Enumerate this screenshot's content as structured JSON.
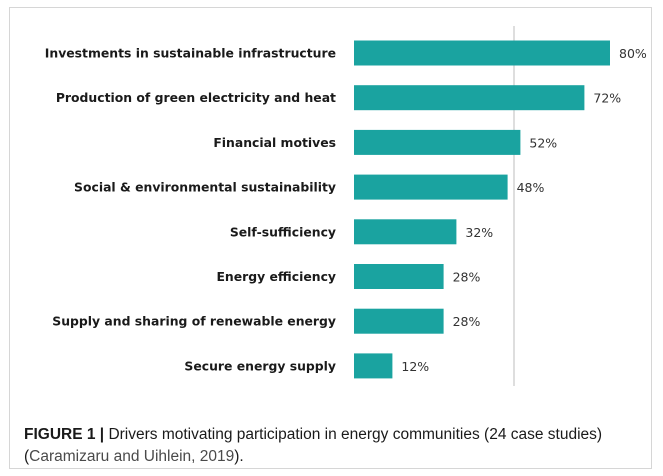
{
  "chart_data": {
    "type": "bar",
    "orientation": "horizontal",
    "categories": [
      "Investments in sustainable infrastructure",
      "Production of green electricity and heat",
      "Financial motives",
      "Social & environmental sustainability",
      "Self-sufficiency",
      "Energy efficiency",
      "Supply and sharing of renewable energy",
      "Secure energy supply"
    ],
    "values": [
      80,
      72,
      52,
      48,
      32,
      28,
      28,
      12
    ],
    "value_labels": [
      "80%",
      "72%",
      "52%",
      "48%",
      "32%",
      "28%",
      "28%",
      "12%"
    ],
    "xlim": [
      0,
      100
    ],
    "bar_color": "#1aa3a0",
    "gridline_color": "#bdbdbd",
    "grid": "single vertical gridline"
  },
  "caption": {
    "label": "FIGURE 1 |",
    "text": " Drivers motivating participation in energy communities (24 case studies) (",
    "reference": "Caramizaru and Uihlein, 2019",
    "end": ")."
  }
}
